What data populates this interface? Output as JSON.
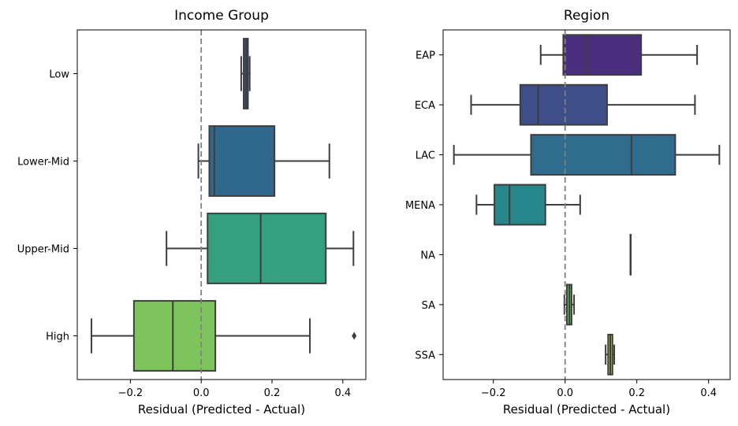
{
  "chart_data": [
    {
      "type": "boxplot",
      "orientation": "horizontal",
      "title": "Income Group",
      "xlabel": "Residual (Predicted - Actual)",
      "xlim": [
        -0.35,
        0.465
      ],
      "xticks": [
        -0.2,
        0.0,
        0.2,
        0.4
      ],
      "xtick_labels": [
        "−0.2",
        "0.0",
        "0.2",
        "0.4"
      ],
      "reference_line": {
        "x": 0.0,
        "style": "dashed",
        "color": "#808080"
      },
      "categories": [
        "Low",
        "Lower-Mid",
        "Upper-Mid",
        "High"
      ],
      "boxes": [
        {
          "category": "Low",
          "whisker_low": 0.113,
          "q1": 0.12,
          "median": 0.127,
          "q3": 0.132,
          "whisker_high": 0.137,
          "outliers": [],
          "color": "#3e4a89"
        },
        {
          "category": "Lower-Mid",
          "whisker_low": -0.008,
          "q1": 0.023,
          "median": 0.037,
          "q3": 0.207,
          "whisker_high": 0.362,
          "outliers": [],
          "color": "#31688e"
        },
        {
          "category": "Upper-Mid",
          "whisker_low": -0.098,
          "q1": 0.018,
          "median": 0.168,
          "q3": 0.352,
          "whisker_high": 0.43,
          "outliers": [],
          "color": "#35a07f"
        },
        {
          "category": "High",
          "whisker_low": -0.31,
          "q1": -0.19,
          "median": -0.08,
          "q3": 0.04,
          "whisker_high": 0.307,
          "outliers": [
            0.432
          ],
          "color": "#7ec45c"
        }
      ]
    },
    {
      "type": "boxplot",
      "orientation": "horizontal",
      "title": "Region",
      "xlabel": "Residual (Predicted - Actual)",
      "xlim": [
        -0.34,
        0.46
      ],
      "xticks": [
        -0.2,
        0.0,
        0.2,
        0.4
      ],
      "xtick_labels": [
        "−0.2",
        "0.0",
        "0.2",
        "0.4"
      ],
      "reference_line": {
        "x": 0.0,
        "style": "dashed",
        "color": "#808080"
      },
      "categories": [
        "EAP",
        "ECA",
        "LAC",
        "MENA",
        "NA",
        "SA",
        "SSA"
      ],
      "boxes": [
        {
          "category": "EAP",
          "whisker_low": -0.068,
          "q1": -0.005,
          "median": 0.06,
          "q3": 0.212,
          "whisker_high": 0.368,
          "outliers": [],
          "color": "#4a2f7f"
        },
        {
          "category": "ECA",
          "whisker_low": -0.262,
          "q1": -0.125,
          "median": -0.075,
          "q3": 0.117,
          "whisker_high": 0.362,
          "outliers": [],
          "color": "#3d4e89"
        },
        {
          "category": "LAC",
          "whisker_low": -0.31,
          "q1": -0.095,
          "median": 0.185,
          "q3": 0.307,
          "whisker_high": 0.43,
          "outliers": [],
          "color": "#2f6c8d"
        },
        {
          "category": "MENA",
          "whisker_low": -0.247,
          "q1": -0.197,
          "median": -0.155,
          "q3": -0.055,
          "whisker_high": 0.042,
          "outliers": [],
          "color": "#27878a"
        },
        {
          "category": "NA",
          "whisker_low": 0.182,
          "q1": 0.182,
          "median": 0.182,
          "q3": 0.182,
          "whisker_high": 0.182,
          "outliers": [],
          "color": "#2aa07d"
        },
        {
          "category": "SA",
          "whisker_low": -0.002,
          "q1": 0.005,
          "median": 0.012,
          "q3": 0.018,
          "whisker_high": 0.025,
          "outliers": [],
          "color": "#5cc15e"
        },
        {
          "category": "SSA",
          "whisker_low": 0.113,
          "q1": 0.12,
          "median": 0.126,
          "q3": 0.132,
          "whisker_high": 0.137,
          "outliers": [],
          "color": "#b0cf3a"
        }
      ]
    }
  ]
}
